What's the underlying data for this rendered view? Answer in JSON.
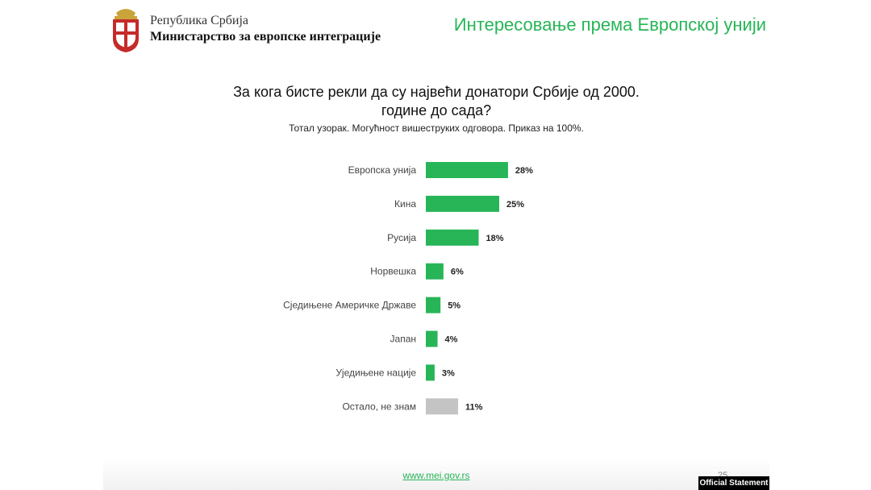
{
  "header": {
    "line1": "Република Србија",
    "line2": "Министарство за европске интеграције",
    "title": "Интересовање према Европској унији"
  },
  "question": {
    "title_line1": "За кога бисте рекли да су највећи донатори Србије од 2000.",
    "title_line2": "године до сада?",
    "subtitle": "Тотал узорак. Могућност вишеструких одговора. Приказ на 100%."
  },
  "chart_data": {
    "type": "bar",
    "orientation": "horizontal",
    "categories": [
      "Европска унија",
      "Кина",
      "Русија",
      "Норвешка",
      "Сједињене Америчке Државе",
      "Јапан",
      "Уједињене нације",
      "Остало, не знам"
    ],
    "values": [
      28,
      25,
      18,
      6,
      5,
      4,
      3,
      11
    ],
    "value_labels": [
      "28%",
      "25%",
      "18%",
      "6%",
      "5%",
      "4%",
      "3%",
      "11%"
    ],
    "colors": [
      "#27b557",
      "#27b557",
      "#27b557",
      "#27b557",
      "#27b557",
      "#27b557",
      "#27b557",
      "#c4c4c4"
    ],
    "grid": false
  },
  "footer": {
    "url": "www.mei.gov.rs",
    "page": "25",
    "badge": "Official Statement"
  }
}
